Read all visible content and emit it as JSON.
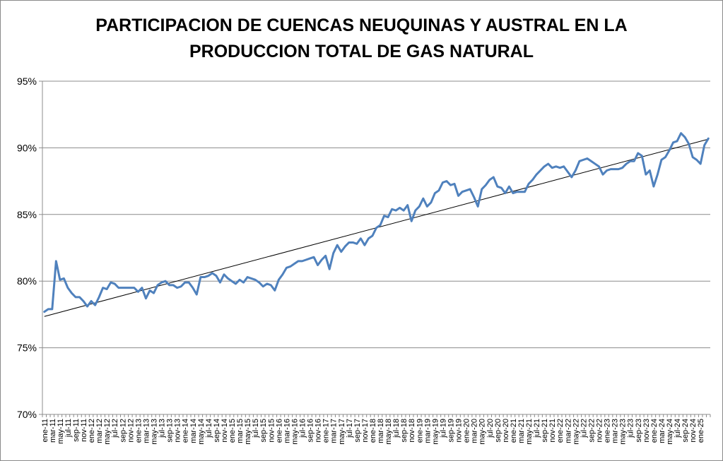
{
  "chart_data": {
    "type": "line",
    "title_lines": [
      "PARTICIPACION DE CUENCAS NEUQUINAS Y AUSTRAL EN LA",
      "PRODUCCION TOTAL DE GAS NATURAL"
    ],
    "xlabel": "",
    "ylabel": "",
    "ylim": [
      70,
      95
    ],
    "y_ticks": [
      "70%",
      "75%",
      "80%",
      "85%",
      "90%",
      "95%"
    ],
    "x_tick_labels": [
      "ene-11",
      "mar-11",
      "may-11",
      "jul-11",
      "sep-11",
      "nov-11",
      "ene-12",
      "mar-12",
      "may-12",
      "jul-12",
      "sep-12",
      "nov-12",
      "ene-13",
      "mar-13",
      "may-13",
      "jul-13",
      "sep-13",
      "nov-13",
      "ene-14",
      "mar-14",
      "may-14",
      "jul-14",
      "sep-14",
      "nov-14",
      "ene-15",
      "mar-15",
      "may-15",
      "jul-15",
      "sep-15",
      "nov-15",
      "ene-16",
      "mar-16",
      "may-16",
      "jul-16",
      "sep-16",
      "nov-16",
      "ene-17",
      "mar-17",
      "may-17",
      "jul-17",
      "sep-17",
      "nov-17",
      "ene-18",
      "mar-18",
      "may-18",
      "jul-18",
      "sep-18",
      "nov-18",
      "ene-19",
      "mar-19",
      "may-19",
      "jul-19",
      "sep-19",
      "nov-19",
      "ene-20",
      "mar-20",
      "may-20",
      "jul-20",
      "sep-20",
      "nov-20",
      "ene-21",
      "mar-21",
      "may-21",
      "jul-21",
      "sep-21",
      "nov-21",
      "ene-22",
      "mar-22",
      "may-22",
      "jul-22",
      "sep-22",
      "nov-22",
      "ene-23",
      "mar-23",
      "may-23",
      "jul-23",
      "sep-23",
      "nov-23",
      "ene-24",
      "mar-24",
      "may-24",
      "jul-24",
      "sep-24",
      "nov-24",
      "ene-25"
    ],
    "grid": true,
    "legend": "none",
    "series": [
      {
        "color": "#4f81bd",
        "values": [
          77.7,
          77.9,
          77.9,
          81.5,
          80.1,
          80.2,
          79.5,
          79.1,
          78.8,
          78.8,
          78.5,
          78.1,
          78.5,
          78.2,
          78.8,
          79.5,
          79.4,
          79.9,
          79.8,
          79.5,
          79.5,
          79.5,
          79.5,
          79.5,
          79.2,
          79.5,
          78.7,
          79.3,
          79.1,
          79.7,
          79.9,
          80.0,
          79.7,
          79.7,
          79.5,
          79.6,
          79.9,
          79.9,
          79.5,
          79.0,
          80.3,
          80.3,
          80.4,
          80.6,
          80.4,
          79.9,
          80.5,
          80.2,
          80.0,
          79.8,
          80.1,
          79.9,
          80.3,
          80.2,
          80.1,
          79.9,
          79.6,
          79.8,
          79.7,
          79.3,
          80.1,
          80.5,
          81.0,
          81.1,
          81.3,
          81.5,
          81.5,
          81.6,
          81.7,
          81.8,
          81.2,
          81.6,
          81.9,
          80.9,
          82.1,
          82.7,
          82.2,
          82.6,
          82.9,
          82.9,
          82.8,
          83.2,
          82.7,
          83.2,
          83.4,
          84.0,
          84.2,
          84.9,
          84.8,
          85.4,
          85.3,
          85.5,
          85.3,
          85.7,
          84.5,
          85.3,
          85.6,
          86.2,
          85.6,
          85.9,
          86.6,
          86.8,
          87.4,
          87.5,
          87.2,
          87.3,
          86.4,
          86.7,
          86.8,
          86.9,
          86.3,
          85.6,
          86.9,
          87.2,
          87.6,
          87.8,
          87.1,
          87.0,
          86.6,
          87.1,
          86.6,
          86.7,
          86.7,
          86.7,
          87.3,
          87.6,
          88.0,
          88.3,
          88.6,
          88.8,
          88.5,
          88.6,
          88.5,
          88.6,
          88.2,
          87.8,
          88.3,
          89.0,
          89.1,
          89.2,
          89.0,
          88.8,
          88.6,
          88.0,
          88.3,
          88.4,
          88.4,
          88.4,
          88.5,
          88.8,
          89.0,
          89.0,
          89.6,
          89.4,
          88.0,
          88.3,
          87.1,
          88.0,
          89.1,
          89.3,
          89.8,
          90.4,
          90.5,
          91.1,
          90.8,
          90.3,
          89.3,
          89.1,
          88.8,
          90.2,
          90.7
        ]
      }
    ],
    "trendline": {
      "color": "#000000",
      "start": 77.35,
      "end": 90.65
    }
  }
}
